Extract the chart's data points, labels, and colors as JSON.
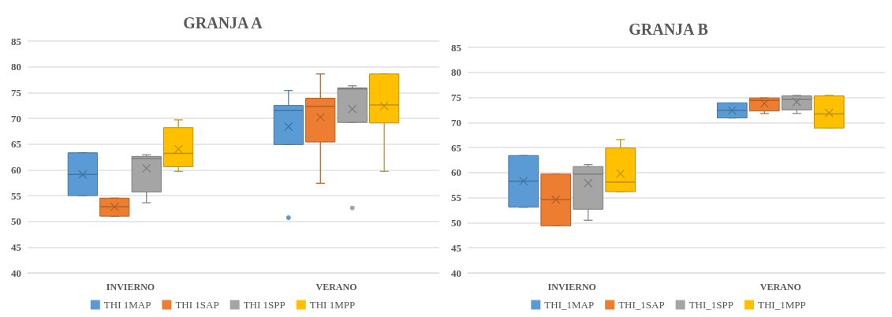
{
  "chart_data": [
    {
      "type": "box",
      "title": "GRANJA A",
      "categories": [
        "INVIERNO",
        "VERANO"
      ],
      "ylim": [
        40,
        85
      ],
      "yticks": [
        40,
        45,
        50,
        55,
        60,
        65,
        70,
        75,
        80,
        85
      ],
      "grid": "y",
      "legend": "bottom",
      "series": [
        {
          "name": "THI 1MAP",
          "color": "#5b9bd5",
          "boxes": [
            {
              "low": 55.0,
              "q1": 55.0,
              "median": 59.1,
              "q3": 63.3,
              "high": 63.3,
              "mean": 59.1
            },
            {
              "low": 64.9,
              "q1": 64.9,
              "median": 71.5,
              "q3": 72.5,
              "high": 75.4,
              "mean": 68.4,
              "outliers": [
                50.7
              ]
            }
          ]
        },
        {
          "name": "THI 1SAP",
          "color": "#ed7d31",
          "boxes": [
            {
              "low": 51.0,
              "q1": 51.0,
              "median": 52.8,
              "q3": 54.5,
              "high": 54.5,
              "mean": 52.8
            },
            {
              "low": 57.4,
              "q1": 65.4,
              "median": 72.3,
              "q3": 73.9,
              "high": 78.6,
              "mean": 70.2
            }
          ]
        },
        {
          "name": "THI 1SPP",
          "color": "#a5a5a5",
          "boxes": [
            {
              "low": 53.6,
              "q1": 55.7,
              "median": 62.2,
              "q3": 62.6,
              "high": 62.9,
              "mean": 60.3
            },
            {
              "low": 69.2,
              "q1": 69.2,
              "median": 75.7,
              "q3": 75.9,
              "high": 76.3,
              "mean": 71.8,
              "outliers": [
                52.6
              ]
            }
          ]
        },
        {
          "name": "THI 1MPP",
          "color": "#ffc000",
          "boxes": [
            {
              "low": 59.7,
              "q1": 60.6,
              "median": 63.2,
              "q3": 68.2,
              "high": 69.7,
              "mean": 64.0
            },
            {
              "low": 59.7,
              "q1": 69.1,
              "median": 72.6,
              "q3": 78.6,
              "high": 78.6,
              "mean": 72.4
            }
          ]
        }
      ]
    },
    {
      "type": "box",
      "title": "GRANJA B",
      "categories": [
        "INVIERNO",
        "VERANO"
      ],
      "ylim": [
        40,
        85
      ],
      "yticks": [
        40,
        45,
        50,
        55,
        60,
        65,
        70,
        75,
        80,
        85
      ],
      "grid": "y",
      "legend": "bottom",
      "series": [
        {
          "name": "THI_1MAP",
          "color": "#5b9bd5",
          "boxes": [
            {
              "low": 53.1,
              "q1": 53.1,
              "median": 58.3,
              "q3": 63.4,
              "high": 63.4,
              "mean": 58.3
            },
            {
              "low": 70.9,
              "q1": 70.9,
              "median": 72.4,
              "q3": 73.9,
              "high": 73.9,
              "mean": 72.4
            }
          ]
        },
        {
          "name": "THI_1SAP",
          "color": "#ed7d31",
          "boxes": [
            {
              "low": 49.4,
              "q1": 49.4,
              "median": 54.6,
              "q3": 59.7,
              "high": 59.7,
              "mean": 54.6
            },
            {
              "low": 71.8,
              "q1": 72.3,
              "median": 74.4,
              "q3": 74.9,
              "high": 74.9,
              "mean": 73.8
            }
          ]
        },
        {
          "name": "THI_1SPP",
          "color": "#a5a5a5",
          "boxes": [
            {
              "low": 50.5,
              "q1": 52.7,
              "median": 59.7,
              "q3": 61.2,
              "high": 61.6,
              "mean": 57.9
            },
            {
              "low": 71.8,
              "q1": 72.5,
              "median": 74.6,
              "q3": 75.3,
              "high": 75.4,
              "mean": 74.1
            }
          ]
        },
        {
          "name": "THI_1MPP",
          "color": "#ffc000",
          "boxes": [
            {
              "low": 56.2,
              "q1": 56.2,
              "median": 58.1,
              "q3": 64.9,
              "high": 66.6,
              "mean": 59.8
            },
            {
              "low": 68.9,
              "q1": 68.9,
              "median": 71.7,
              "q3": 75.3,
              "high": 75.4,
              "mean": 71.9
            }
          ]
        }
      ]
    }
  ]
}
